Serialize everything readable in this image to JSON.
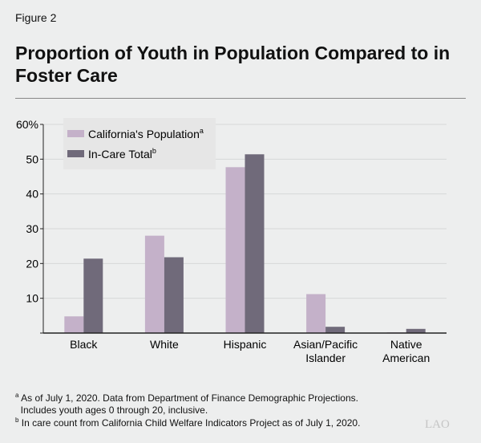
{
  "figure_label": "Figure 2",
  "chart_data": {
    "type": "bar",
    "title": "Proportion of Youth in Population Compared to in Foster Care",
    "categories": [
      "Black",
      "White",
      "Hispanic",
      "Asian/Pacific Islander",
      "Native American"
    ],
    "series": [
      {
        "name": "California's Population",
        "sup": "a",
        "color": "#c4b1c9",
        "values": [
          4.8,
          28.0,
          47.7,
          11.2,
          0.2
        ]
      },
      {
        "name": "In-Care Total",
        "sup": "b",
        "color": "#706a7a",
        "values": [
          21.4,
          21.8,
          51.4,
          1.8,
          1.2
        ]
      }
    ],
    "ylim": [
      0,
      60
    ],
    "yticks": [
      "",
      "10",
      "20",
      "30",
      "40",
      "50",
      "60%"
    ],
    "grid": true,
    "legend": "top-left"
  },
  "footnotes": [
    {
      "mark": "a",
      "lines": [
        "As of July 1, 2020. Data from Department of Finance Demographic Projections.",
        "Includes youth ages 0 through 20, inclusive."
      ]
    },
    {
      "mark": "b",
      "lines": [
        "In care count from California Child Welfare Indicators Project as of July 1, 2020."
      ]
    }
  ],
  "logo": "LAO"
}
